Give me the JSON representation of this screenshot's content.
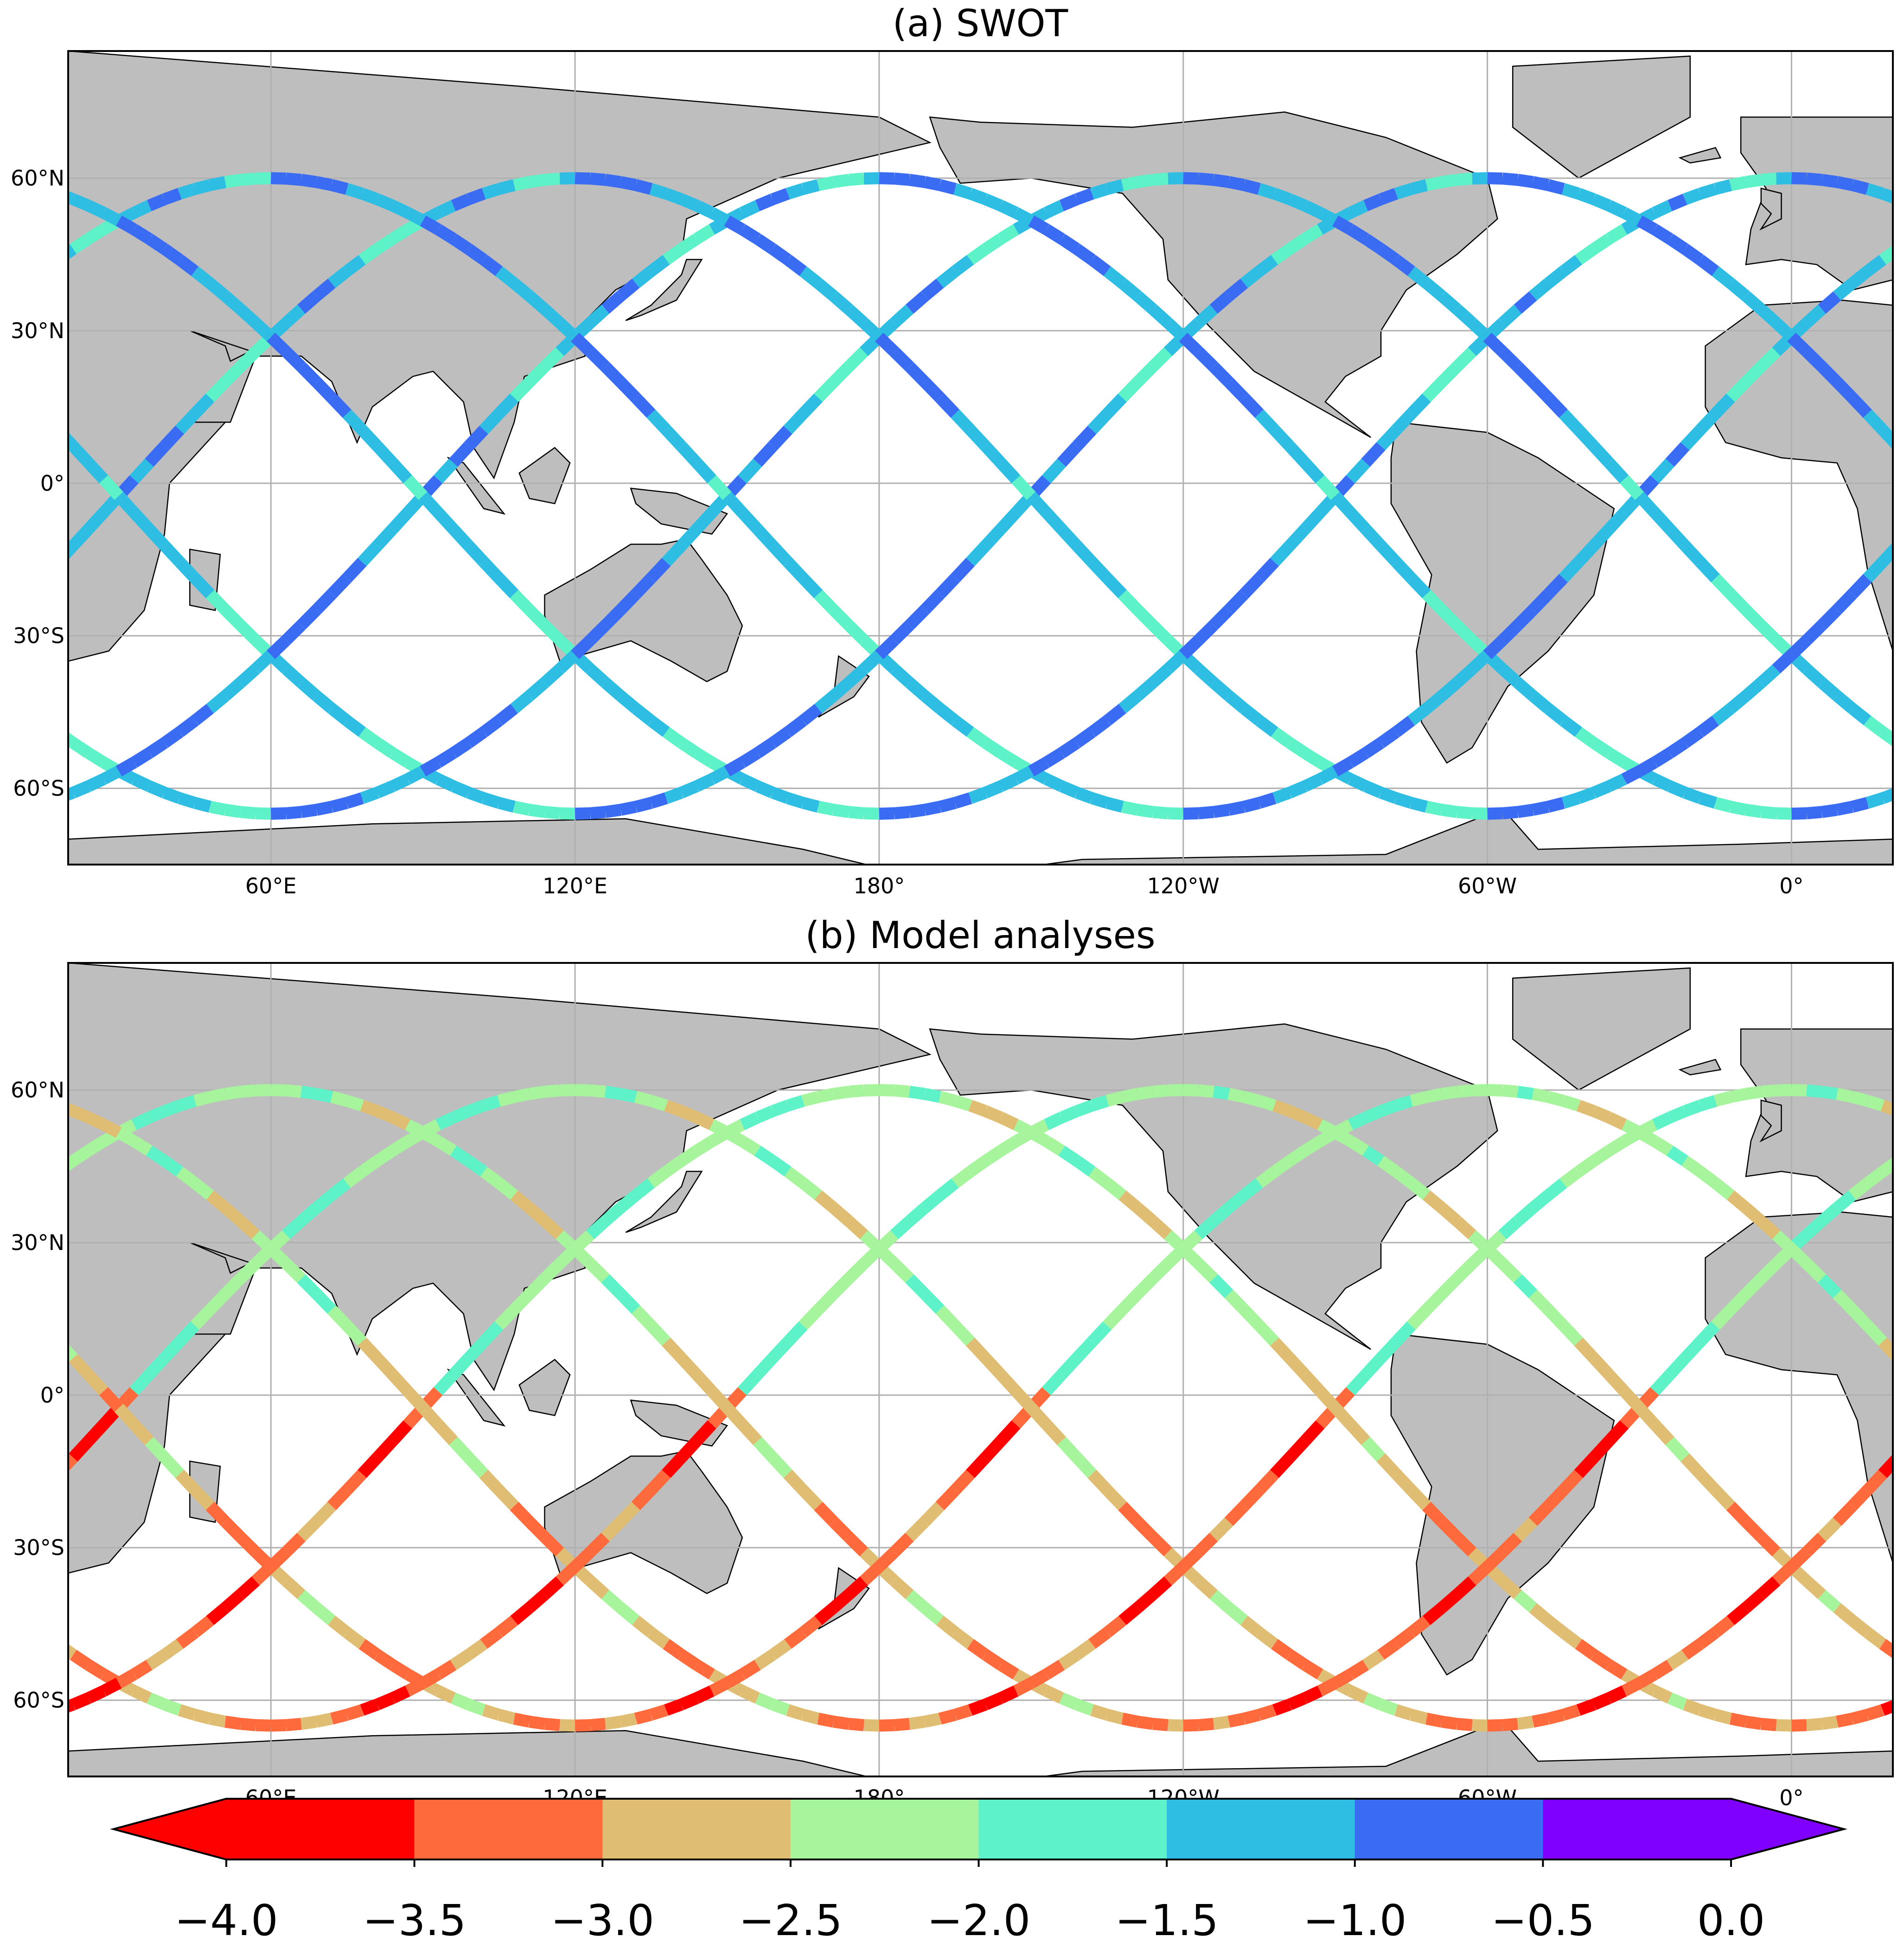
{
  "panels": [
    {
      "id": "swot",
      "title": "(a) SWOT",
      "lat_ticks": [
        {
          "lat": 60,
          "label": "60°N"
        },
        {
          "lat": 30,
          "label": "30°N"
        },
        {
          "lat": 0,
          "label": "0°"
        },
        {
          "lat": -30,
          "label": "30°S"
        },
        {
          "lat": -60,
          "label": "60°S"
        }
      ],
      "lon_ticks": [
        {
          "lon": 60,
          "label": "60°E"
        },
        {
          "lon": 120,
          "label": "120°E"
        },
        {
          "lon": 180,
          "label": "180°"
        },
        {
          "lon": 240,
          "label": "120°W"
        },
        {
          "lon": 300,
          "label": "60°W"
        },
        {
          "lon": 360,
          "label": "0°"
        }
      ],
      "track_values": {
        "south_asc": -0.9,
        "north_asc": -1.3,
        "south_desc": -1.4,
        "north_desc": -1.0
      }
    },
    {
      "id": "model",
      "title": "(b) Model analyses",
      "lat_ticks": [
        {
          "lat": 60,
          "label": "60°N"
        },
        {
          "lat": 30,
          "label": "30°N"
        },
        {
          "lat": 0,
          "label": "0°"
        },
        {
          "lat": -30,
          "label": "30°S"
        },
        {
          "lat": -60,
          "label": "60°S"
        }
      ],
      "lon_ticks": [
        {
          "lon": 60,
          "label": "60°E"
        },
        {
          "lon": 120,
          "label": "120°E"
        },
        {
          "lon": 180,
          "label": "180°"
        },
        {
          "lon": 240,
          "label": "120°W"
        },
        {
          "lon": 300,
          "label": "60°W"
        },
        {
          "lon": 360,
          "label": "0°"
        }
      ],
      "track_values": {
        "south_asc": -3.3,
        "north_asc": -2.1,
        "south_desc": -2.8,
        "north_desc": -2.3
      }
    }
  ],
  "map_extent": {
    "lon_min": 20,
    "lon_max": 380,
    "lat_min": -75,
    "lat_max": 85
  },
  "colorbar": {
    "levels": [
      -4.0,
      -3.5,
      -3.0,
      -2.5,
      -2.0,
      -1.5,
      -1.0,
      -0.5,
      0.0
    ],
    "tick_labels": [
      "−4.0",
      "−3.5",
      "−3.0",
      "−2.5",
      "−2.0",
      "−1.5",
      "−1.0",
      "−0.5",
      "0.0"
    ],
    "colors": [
      "#ff0000",
      "#ff6a3c",
      "#dfbd72",
      "#a6f49b",
      "#5ef2c8",
      "#2ebde3",
      "#3a6bf3",
      "#8000ff"
    ],
    "extend": "both"
  },
  "style": {
    "land": "#bebebe",
    "grid": "#b0b0b0",
    "ocean": "#ffffff"
  }
}
